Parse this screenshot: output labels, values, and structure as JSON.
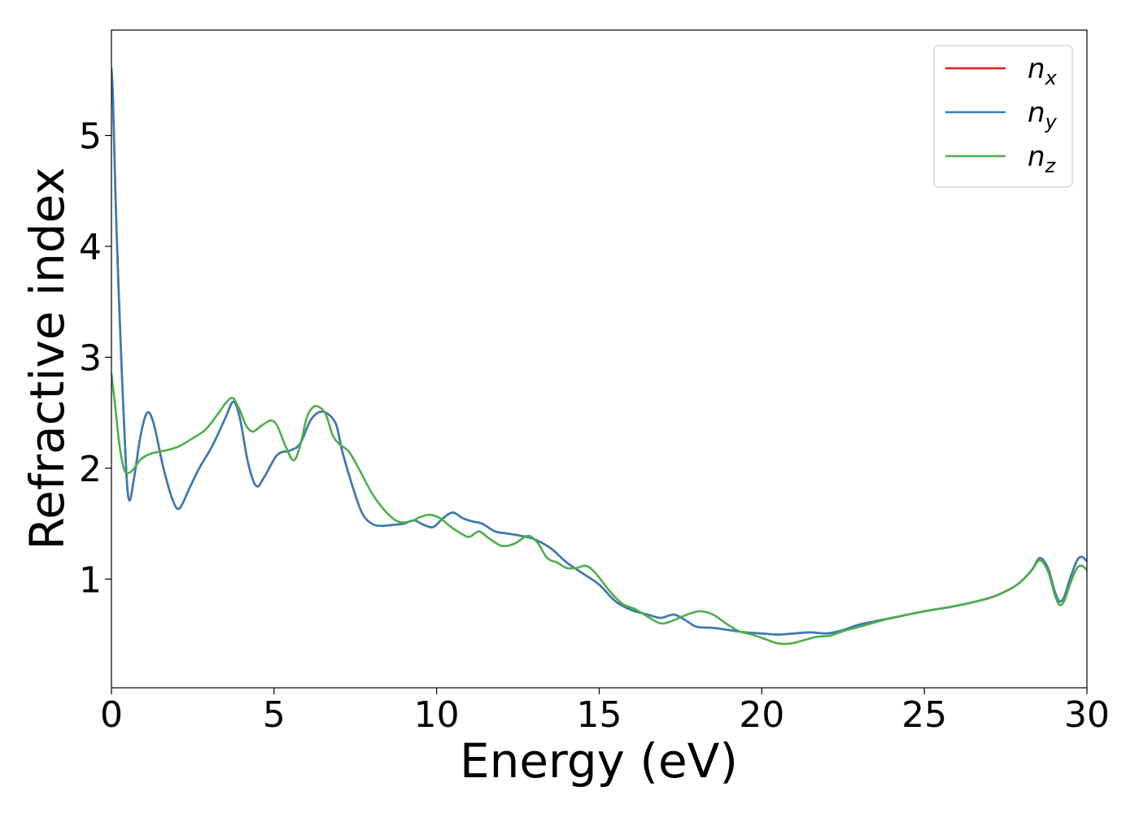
{
  "chart_data": {
    "type": "line",
    "title": "",
    "xlabel": "Energy (eV)",
    "ylabel": "Refractive index",
    "xlim": [
      0,
      30
    ],
    "ylim": [
      0.02,
      5.95
    ],
    "xticks": [
      0,
      5,
      10,
      15,
      20,
      25,
      30
    ],
    "yticks": [
      1,
      2,
      3,
      4,
      5
    ],
    "grid": false,
    "legend_position": "top-right",
    "series": [
      {
        "name": "n_x",
        "label_base": "n",
        "label_sub": "x",
        "color": "#e41a1c",
        "x": [
          0,
          0.05,
          0.15,
          0.3,
          0.45,
          0.55,
          0.7,
          0.9,
          1.1,
          1.3,
          1.6,
          1.9,
          2.1,
          2.4,
          2.7,
          3.1,
          3.5,
          3.75,
          3.95,
          4.2,
          4.45,
          4.7,
          5.1,
          5.5,
          5.8,
          6.1,
          6.35,
          6.6,
          6.9,
          7.1,
          7.4,
          7.7,
          8.0,
          8.3,
          8.7,
          9.0,
          9.3,
          9.6,
          9.9,
          10.2,
          10.5,
          10.8,
          11.1,
          11.4,
          11.8,
          12.2,
          12.6,
          13.0,
          13.5,
          14.0,
          14.5,
          15.0,
          15.5,
          16.0,
          16.5,
          16.9,
          17.3,
          17.7,
          18.0,
          18.5,
          19.0,
          19.5,
          20.0,
          20.5,
          21.0,
          21.5,
          22.0,
          22.5,
          23.0,
          24.0,
          25.0,
          26.0,
          27.0,
          27.5,
          27.9,
          28.3,
          28.55,
          28.8,
          29.0,
          29.15,
          29.3,
          29.5,
          29.7,
          29.85,
          30.0
        ],
        "y": [
          5.6,
          5.3,
          4.2,
          3.0,
          2.0,
          1.71,
          1.92,
          2.3,
          2.5,
          2.4,
          2.0,
          1.7,
          1.64,
          1.82,
          2.0,
          2.2,
          2.45,
          2.6,
          2.45,
          2.05,
          1.84,
          1.92,
          2.12,
          2.16,
          2.22,
          2.42,
          2.5,
          2.5,
          2.4,
          2.15,
          1.85,
          1.6,
          1.5,
          1.48,
          1.49,
          1.5,
          1.53,
          1.49,
          1.47,
          1.55,
          1.6,
          1.55,
          1.52,
          1.5,
          1.43,
          1.41,
          1.39,
          1.36,
          1.28,
          1.15,
          1.05,
          0.95,
          0.8,
          0.72,
          0.68,
          0.65,
          0.68,
          0.62,
          0.57,
          0.56,
          0.54,
          0.52,
          0.51,
          0.5,
          0.51,
          0.52,
          0.51,
          0.54,
          0.59,
          0.65,
          0.71,
          0.76,
          0.83,
          0.89,
          0.96,
          1.08,
          1.19,
          1.1,
          0.9,
          0.8,
          0.84,
          1.02,
          1.17,
          1.2,
          1.16
        ]
      },
      {
        "name": "n_y",
        "label_base": "n",
        "label_sub": "y",
        "color": "#377eb8",
        "x": [
          0,
          0.05,
          0.15,
          0.3,
          0.45,
          0.55,
          0.7,
          0.9,
          1.1,
          1.3,
          1.6,
          1.9,
          2.1,
          2.4,
          2.7,
          3.1,
          3.5,
          3.75,
          3.95,
          4.2,
          4.45,
          4.7,
          5.1,
          5.5,
          5.8,
          6.1,
          6.35,
          6.6,
          6.9,
          7.1,
          7.4,
          7.7,
          8.0,
          8.3,
          8.7,
          9.0,
          9.3,
          9.6,
          9.9,
          10.2,
          10.5,
          10.8,
          11.1,
          11.4,
          11.8,
          12.2,
          12.6,
          13.0,
          13.5,
          14.0,
          14.5,
          15.0,
          15.5,
          16.0,
          16.5,
          16.9,
          17.3,
          17.7,
          18.0,
          18.5,
          19.0,
          19.5,
          20.0,
          20.5,
          21.0,
          21.5,
          22.0,
          22.5,
          23.0,
          24.0,
          25.0,
          26.0,
          27.0,
          27.5,
          27.9,
          28.3,
          28.55,
          28.8,
          29.0,
          29.15,
          29.3,
          29.5,
          29.7,
          29.85,
          30.0
        ],
        "y": [
          5.6,
          5.3,
          4.2,
          3.0,
          2.0,
          1.71,
          1.92,
          2.3,
          2.5,
          2.4,
          2.0,
          1.7,
          1.64,
          1.82,
          2.0,
          2.2,
          2.45,
          2.6,
          2.45,
          2.05,
          1.84,
          1.92,
          2.12,
          2.16,
          2.22,
          2.42,
          2.5,
          2.5,
          2.4,
          2.15,
          1.85,
          1.6,
          1.5,
          1.48,
          1.49,
          1.5,
          1.53,
          1.49,
          1.47,
          1.55,
          1.6,
          1.55,
          1.52,
          1.5,
          1.43,
          1.41,
          1.39,
          1.36,
          1.28,
          1.15,
          1.05,
          0.95,
          0.8,
          0.72,
          0.68,
          0.65,
          0.68,
          0.62,
          0.57,
          0.56,
          0.54,
          0.52,
          0.51,
          0.5,
          0.51,
          0.52,
          0.51,
          0.54,
          0.59,
          0.65,
          0.71,
          0.76,
          0.83,
          0.89,
          0.96,
          1.08,
          1.19,
          1.1,
          0.9,
          0.8,
          0.84,
          1.02,
          1.17,
          1.2,
          1.16
        ]
      },
      {
        "name": "n_z",
        "label_base": "n",
        "label_sub": "z",
        "color": "#4daf4a",
        "x": [
          0,
          0.1,
          0.25,
          0.4,
          0.55,
          0.7,
          0.9,
          1.2,
          1.5,
          1.8,
          2.1,
          2.5,
          2.9,
          3.3,
          3.55,
          3.75,
          3.95,
          4.15,
          4.35,
          4.6,
          4.9,
          5.1,
          5.35,
          5.6,
          5.8,
          6.0,
          6.2,
          6.4,
          6.6,
          6.8,
          7.0,
          7.3,
          7.6,
          8.0,
          8.4,
          8.8,
          9.2,
          9.5,
          9.8,
          10.1,
          10.4,
          10.7,
          11.0,
          11.3,
          11.6,
          12.0,
          12.4,
          12.8,
          13.1,
          13.4,
          13.7,
          14.0,
          14.3,
          14.6,
          14.9,
          15.3,
          15.7,
          16.1,
          16.5,
          16.9,
          17.3,
          17.7,
          18.1,
          18.5,
          18.9,
          19.3,
          19.7,
          20.1,
          20.5,
          20.9,
          21.3,
          21.7,
          22.1,
          22.5,
          23.0,
          24.0,
          25.0,
          26.0,
          27.0,
          27.5,
          27.9,
          28.3,
          28.55,
          28.8,
          29.0,
          29.15,
          29.3,
          29.5,
          29.7,
          29.85,
          30.0
        ],
        "y": [
          2.85,
          2.6,
          2.2,
          1.98,
          1.96,
          2.0,
          2.08,
          2.13,
          2.15,
          2.17,
          2.2,
          2.27,
          2.35,
          2.5,
          2.6,
          2.63,
          2.52,
          2.38,
          2.33,
          2.38,
          2.43,
          2.38,
          2.2,
          2.07,
          2.2,
          2.45,
          2.55,
          2.55,
          2.48,
          2.3,
          2.22,
          2.15,
          2.0,
          1.78,
          1.62,
          1.52,
          1.52,
          1.56,
          1.58,
          1.55,
          1.48,
          1.42,
          1.38,
          1.43,
          1.37,
          1.3,
          1.32,
          1.39,
          1.33,
          1.19,
          1.15,
          1.1,
          1.1,
          1.12,
          1.05,
          0.9,
          0.78,
          0.73,
          0.66,
          0.6,
          0.63,
          0.68,
          0.71,
          0.68,
          0.6,
          0.53,
          0.5,
          0.46,
          0.42,
          0.42,
          0.45,
          0.48,
          0.49,
          0.53,
          0.57,
          0.65,
          0.71,
          0.76,
          0.83,
          0.89,
          0.96,
          1.08,
          1.17,
          1.07,
          0.87,
          0.77,
          0.8,
          0.97,
          1.1,
          1.12,
          1.08
        ]
      }
    ]
  }
}
